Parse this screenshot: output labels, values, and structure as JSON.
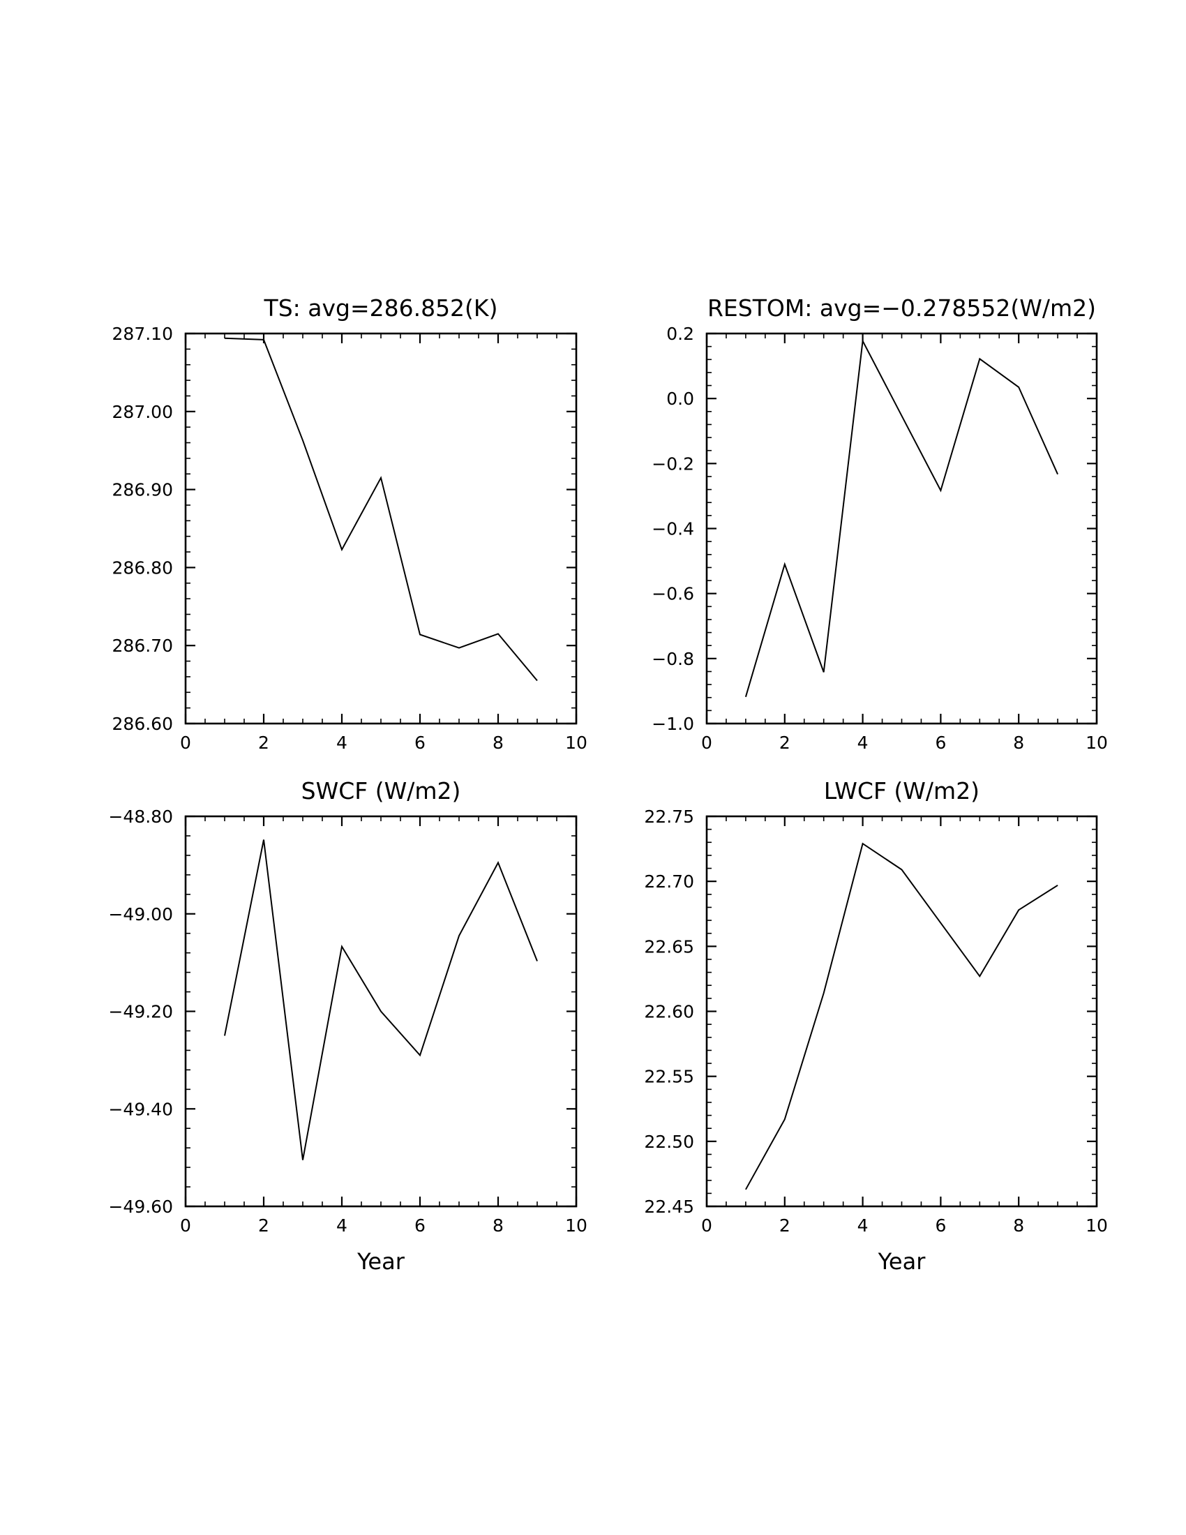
{
  "chart_data": [
    {
      "type": "line",
      "title": "TS: avg=286.852(K)",
      "xlabel": "",
      "ylabel": "",
      "xlim": [
        0,
        10
      ],
      "ylim": [
        286.6,
        287.1
      ],
      "xticks": [
        0,
        2,
        4,
        6,
        8,
        10
      ],
      "xtick_labels": [
        "0",
        "2",
        "4",
        "6",
        "8",
        "10"
      ],
      "yticks": [
        286.6,
        286.7,
        286.8,
        286.9,
        287.0,
        287.1
      ],
      "ytick_labels": [
        "286.60",
        "286.70",
        "286.80",
        "286.90",
        "287.00",
        "287.10"
      ],
      "grid": false,
      "series": [
        {
          "x": [
            1,
            2,
            3,
            4,
            5,
            6,
            7,
            8,
            9
          ],
          "y": [
            287.094,
            287.092,
            286.963,
            286.823,
            286.915,
            286.714,
            286.697,
            286.715,
            286.655
          ]
        }
      ]
    },
    {
      "type": "line",
      "title": "RESTOM: avg=−0.278552(W/m2)",
      "xlabel": "",
      "ylabel": "",
      "xlim": [
        0,
        10
      ],
      "ylim": [
        -1.0,
        0.2
      ],
      "xticks": [
        0,
        2,
        4,
        6,
        8,
        10
      ],
      "xtick_labels": [
        "0",
        "2",
        "4",
        "6",
        "8",
        "10"
      ],
      "yticks": [
        -1.0,
        -0.8,
        -0.6,
        -0.4,
        -0.2,
        0.0,
        0.2
      ],
      "ytick_labels": [
        "−1.0",
        "−0.8",
        "−0.6",
        "−0.4",
        "−0.2",
        "0.0",
        "0.2"
      ],
      "grid": false,
      "series": [
        {
          "x": [
            1,
            2,
            3,
            4,
            5,
            6,
            7,
            8,
            9
          ],
          "y": [
            -0.918,
            -0.51,
            -0.842,
            0.177,
            -0.053,
            -0.283,
            0.122,
            0.035,
            -0.233
          ]
        }
      ]
    },
    {
      "type": "line",
      "title": "SWCF (W/m2)",
      "xlabel": "Year",
      "ylabel": "",
      "xlim": [
        0,
        10
      ],
      "ylim": [
        -49.6,
        -48.8
      ],
      "xticks": [
        0,
        2,
        4,
        6,
        8,
        10
      ],
      "xtick_labels": [
        "0",
        "2",
        "4",
        "6",
        "8",
        "10"
      ],
      "yticks": [
        -49.6,
        -49.4,
        -49.2,
        -49.0,
        -48.8
      ],
      "ytick_labels": [
        "−49.60",
        "−49.40",
        "−49.20",
        "−49.00",
        "−48.80"
      ],
      "grid": false,
      "series": [
        {
          "x": [
            1,
            2,
            3,
            4,
            5,
            6,
            7,
            8,
            9
          ],
          "y": [
            -49.25,
            -48.848,
            -49.505,
            -49.067,
            -49.2,
            -49.29,
            -49.045,
            -48.895,
            -49.097
          ]
        }
      ]
    },
    {
      "type": "line",
      "title": "LWCF (W/m2)",
      "xlabel": "Year",
      "ylabel": "",
      "xlim": [
        0,
        10
      ],
      "ylim": [
        22.45,
        22.75
      ],
      "xticks": [
        0,
        2,
        4,
        6,
        8,
        10
      ],
      "xtick_labels": [
        "0",
        "2",
        "4",
        "6",
        "8",
        "10"
      ],
      "yticks": [
        22.45,
        22.5,
        22.55,
        22.6,
        22.65,
        22.7,
        22.75
      ],
      "ytick_labels": [
        "22.45",
        "22.50",
        "22.55",
        "22.60",
        "22.65",
        "22.70",
        "22.75"
      ],
      "grid": false,
      "series": [
        {
          "x": [
            1,
            2,
            3,
            4,
            5,
            6,
            7,
            8,
            9
          ],
          "y": [
            22.463,
            22.517,
            22.614,
            22.729,
            22.709,
            22.668,
            22.627,
            22.678,
            22.697
          ]
        }
      ]
    }
  ]
}
